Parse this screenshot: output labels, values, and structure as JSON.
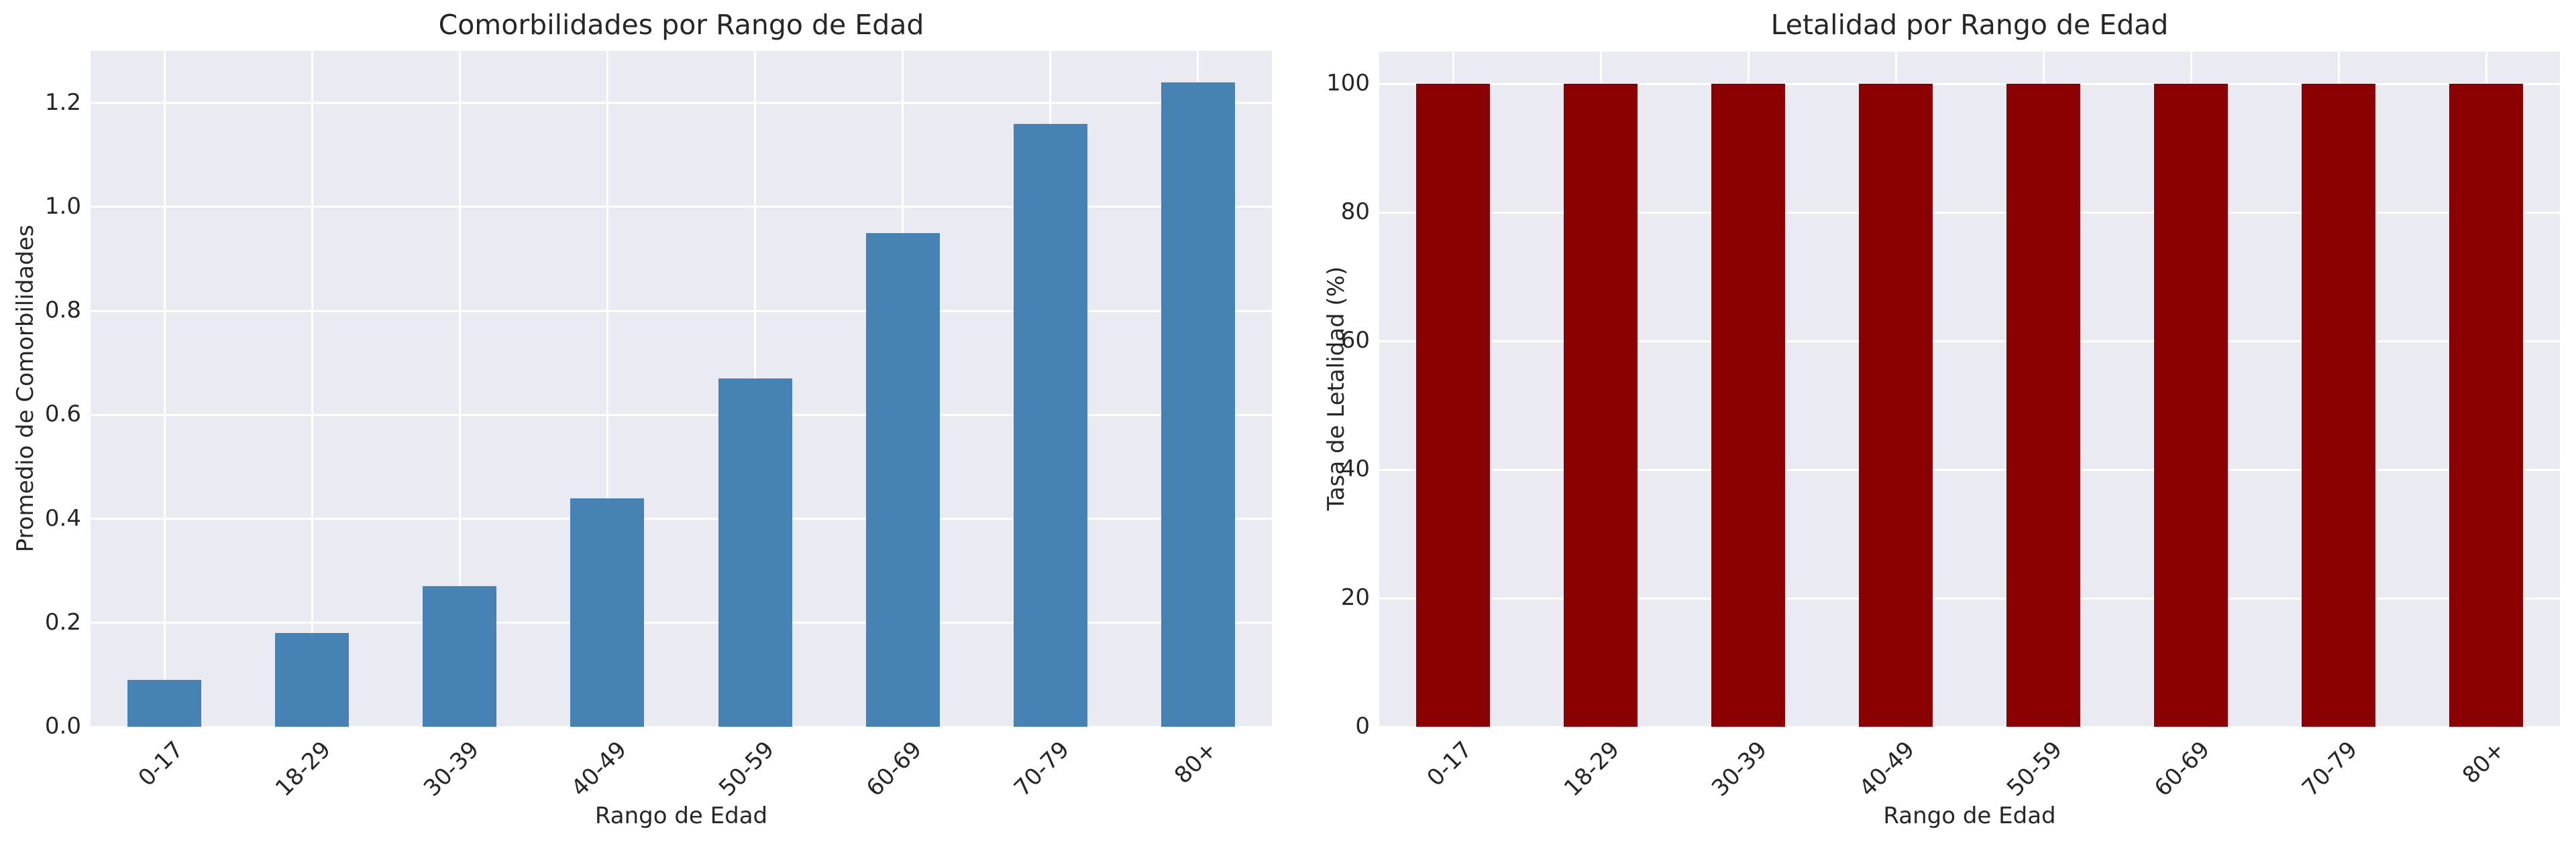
{
  "figure": {
    "background": "#ffffff",
    "axes_background": "#EAEAF2",
    "grid_color": "#ffffff",
    "text_color": "#262626"
  },
  "chart_data": [
    {
      "type": "bar",
      "title": "Comorbilidades por Rango de Edad",
      "xlabel": "Rango de Edad",
      "ylabel": "Promedio de Comorbilidades",
      "categories": [
        "0-17",
        "18-29",
        "30-39",
        "40-49",
        "50-59",
        "60-69",
        "70-79",
        "80+"
      ],
      "values": [
        0.09,
        0.18,
        0.27,
        0.44,
        0.67,
        0.95,
        1.16,
        1.24
      ],
      "bar_color": "#4682B4",
      "ylim": [
        0,
        1.3
      ],
      "yticks": [
        0.0,
        0.2,
        0.4,
        0.6,
        0.8,
        1.0,
        1.2
      ],
      "ytick_labels": [
        "0.0",
        "0.2",
        "0.4",
        "0.6",
        "0.8",
        "1.0",
        "1.2"
      ],
      "grid": true,
      "legend": "none",
      "bar_width_fraction": 0.5,
      "tick_rotation_deg": 45
    },
    {
      "type": "bar",
      "title": "Letalidad por Rango de Edad",
      "xlabel": "Rango de Edad",
      "ylabel": "Tasa de Letalidad (%)",
      "categories": [
        "0-17",
        "18-29",
        "30-39",
        "40-49",
        "50-59",
        "60-69",
        "70-79",
        "80+"
      ],
      "values": [
        100,
        100,
        100,
        100,
        100,
        100,
        100,
        100
      ],
      "bar_color": "#8B0000",
      "ylim": [
        0,
        105
      ],
      "yticks": [
        0,
        20,
        40,
        60,
        80,
        100
      ],
      "ytick_labels": [
        "0",
        "20",
        "40",
        "60",
        "80",
        "100"
      ],
      "grid": true,
      "legend": "none",
      "bar_width_fraction": 0.5,
      "tick_rotation_deg": 45
    }
  ]
}
